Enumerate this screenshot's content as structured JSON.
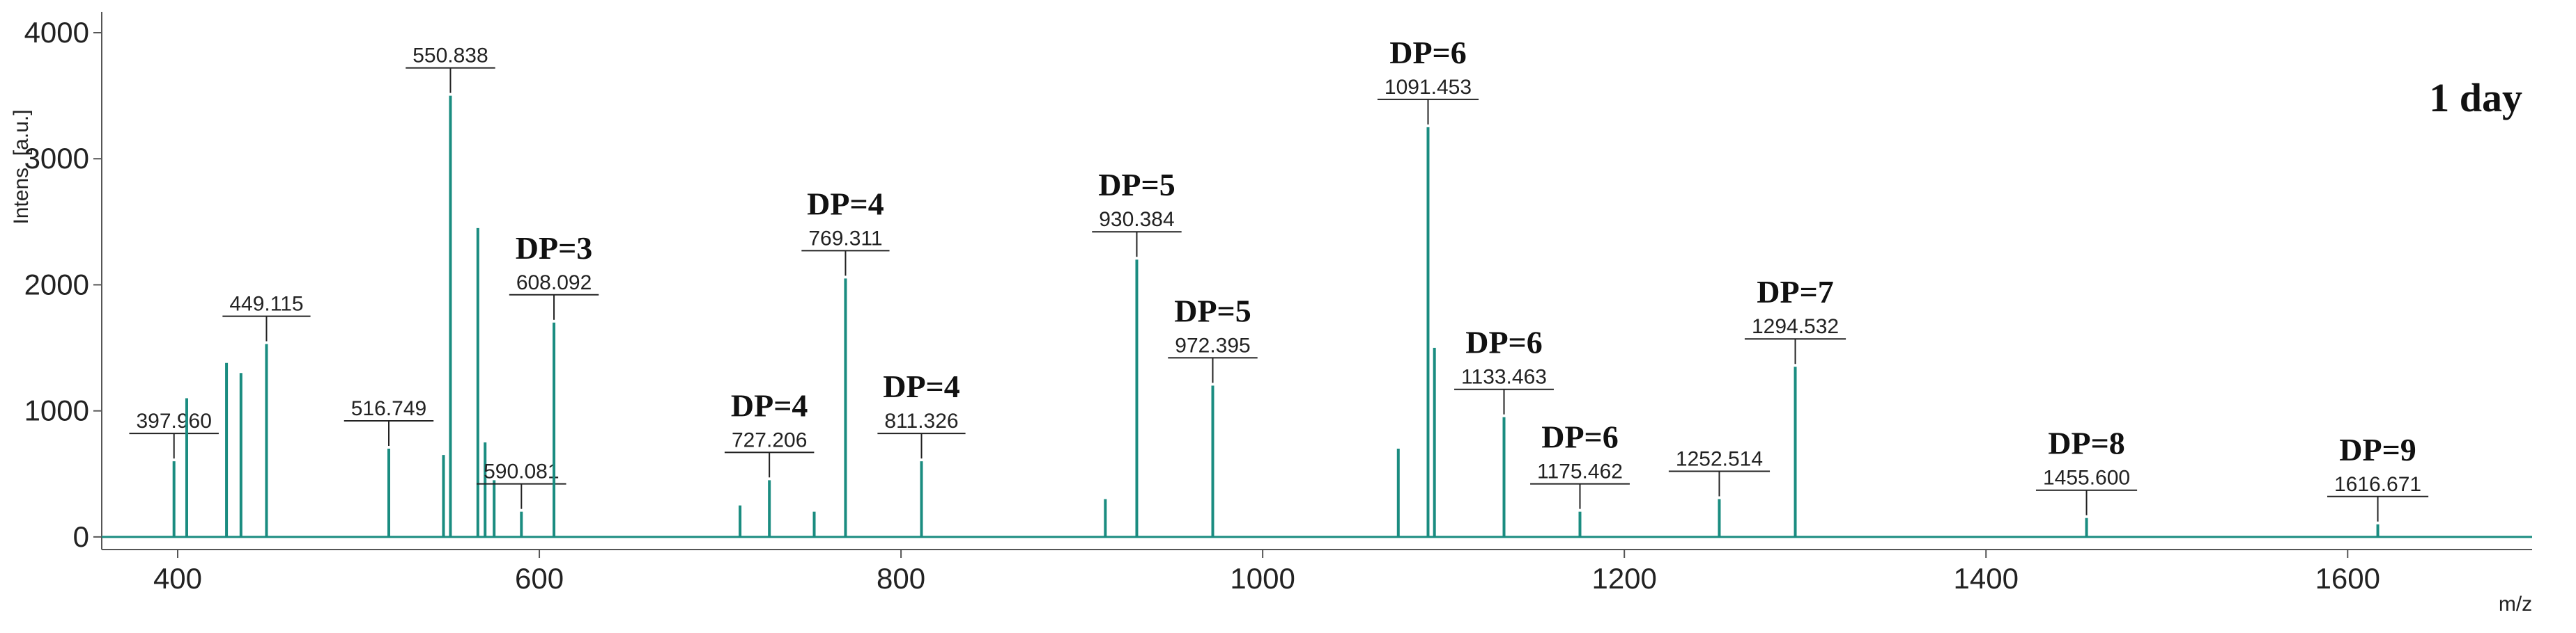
{
  "chart_data": {
    "type": "spectrum",
    "annotation": "1 day",
    "ylabel": "Intens. [a.u.]",
    "xlabel": "m/z",
    "color": "#1a8c80",
    "xlim": [
      358,
      1702
    ],
    "ylim": [
      -100,
      4000
    ],
    "xticks": [
      400,
      600,
      800,
      1000,
      1200,
      1400,
      1600
    ],
    "yticks": [
      0,
      1000,
      2000,
      3000,
      4000
    ],
    "x": [
      397.96,
      405,
      427,
      435,
      449.115,
      516.749,
      547,
      550.838,
      566,
      570,
      575,
      590.081,
      608.092,
      711,
      727.206,
      752,
      769.311,
      811.326,
      913,
      930.384,
      972.395,
      1075,
      1091.453,
      1095,
      1133.463,
      1175.462,
      1252.514,
      1294.532,
      1455.6,
      1616.671
    ],
    "values": [
      600,
      1100,
      1380,
      1300,
      1530,
      700,
      650,
      3500,
      2450,
      750,
      450,
      200,
      1700,
      250,
      450,
      200,
      2050,
      600,
      300,
      2200,
      1200,
      700,
      3250,
      1500,
      950,
      200,
      300,
      1350,
      150,
      100
    ],
    "peak_labels": [
      "397.960",
      null,
      null,
      null,
      "449.115",
      "516.749",
      null,
      "550.838",
      null,
      null,
      null,
      "590.081",
      "608.092",
      null,
      "727.206",
      null,
      "769.311",
      "811.326",
      null,
      "930.384",
      "972.395",
      null,
      "1091.453",
      null,
      "1133.463",
      "1175.462",
      "1252.514",
      "1294.532",
      "1455.600",
      "1616.671"
    ],
    "dp_labels": [
      null,
      null,
      null,
      null,
      null,
      null,
      null,
      null,
      null,
      null,
      null,
      null,
      "DP=3",
      null,
      "DP=4",
      null,
      "DP=4",
      "DP=4",
      null,
      "DP=5",
      "DP=5",
      null,
      "DP=6",
      null,
      "DP=6",
      "DP=6",
      null,
      "DP=7",
      "DP=8",
      "DP=9"
    ]
  }
}
